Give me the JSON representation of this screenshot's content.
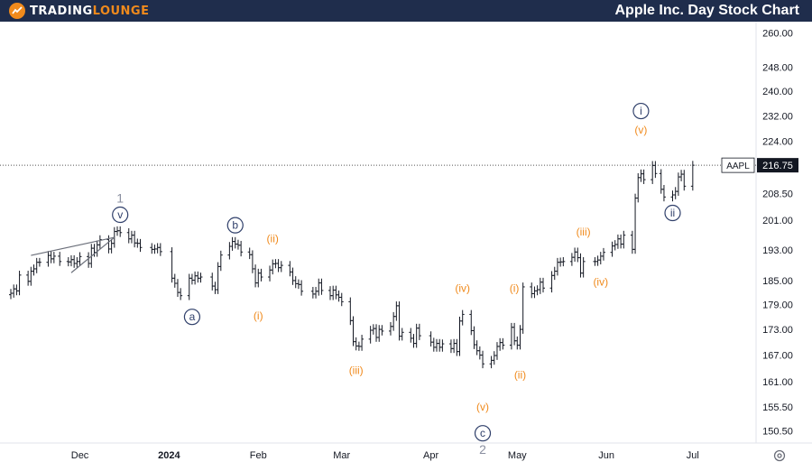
{
  "brand": {
    "name_part1": "TRADING",
    "name_part2": "LOUNGE"
  },
  "title": "Apple Inc. Day Stock Chart",
  "colors": {
    "bars": "#131722",
    "orange_labels": "#f08a1c",
    "circle_labels": "#2f3f6a",
    "gray_labels": "#8a8fa0",
    "price_line": "#555555",
    "header_bg": "#1f2d4c"
  },
  "icons": {
    "settings": "gear-icon",
    "logo": "logo-icon"
  },
  "chart_data": {
    "type": "ohlc",
    "symbol": "AAPL",
    "last_price": 216.75,
    "last_price_label": "216.75",
    "ylim": [
      148,
      264
    ],
    "y_scale": "log",
    "y_ticks": [
      "260.00",
      "248.00",
      "240.00",
      "232.00",
      "224.00",
      "216.75",
      "208.50",
      "201.00",
      "193.00",
      "185.00",
      "179.00",
      "173.00",
      "167.00",
      "161.00",
      "155.50",
      "150.50"
    ],
    "x_ticks": [
      {
        "label": "Dec",
        "date": "2023-12-01"
      },
      {
        "label": "2024",
        "date": "2024-01-01"
      },
      {
        "label": "Feb",
        "date": "2024-02-01"
      },
      {
        "label": "Mar",
        "date": "2024-03-01"
      },
      {
        "label": "Apr",
        "date": "2024-04-01"
      },
      {
        "label": "May",
        "date": "2024-05-01"
      },
      {
        "label": "Jun",
        "date": "2024-06-01"
      },
      {
        "label": "Jul",
        "date": "2024-07-01"
      }
    ],
    "xlim": [
      "2023-11-07",
      "2024-07-23"
    ],
    "closes": [
      [
        "2023-11-07",
        181.8
      ],
      [
        "2023-11-08",
        182.9
      ],
      [
        "2023-11-09",
        182.4
      ],
      [
        "2023-11-10",
        186.4
      ],
      [
        "2023-11-13",
        184.8
      ],
      [
        "2023-11-14",
        187.4
      ],
      [
        "2023-11-15",
        188.0
      ],
      [
        "2023-11-16",
        189.7
      ],
      [
        "2023-11-17",
        189.7
      ],
      [
        "2023-11-20",
        191.5
      ],
      [
        "2023-11-21",
        190.6
      ],
      [
        "2023-11-22",
        191.3
      ],
      [
        "2023-11-24",
        189.9
      ],
      [
        "2023-11-27",
        189.8
      ],
      [
        "2023-11-28",
        190.4
      ],
      [
        "2023-11-29",
        189.4
      ],
      [
        "2023-11-30",
        189.9
      ],
      [
        "2023-12-01",
        191.2
      ],
      [
        "2023-12-04",
        189.4
      ],
      [
        "2023-12-05",
        193.4
      ],
      [
        "2023-12-06",
        192.3
      ],
      [
        "2023-12-07",
        194.3
      ],
      [
        "2023-12-08",
        195.7
      ],
      [
        "2023-12-11",
        193.2
      ],
      [
        "2023-12-12",
        194.7
      ],
      [
        "2023-12-13",
        197.9
      ],
      [
        "2023-12-14",
        198.1
      ],
      [
        "2023-12-15",
        197.6
      ],
      [
        "2023-12-18",
        195.9
      ],
      [
        "2023-12-19",
        196.9
      ],
      [
        "2023-12-20",
        194.8
      ],
      [
        "2023-12-21",
        194.7
      ],
      [
        "2023-12-22",
        193.6
      ],
      [
        "2023-12-26",
        193.1
      ],
      [
        "2023-12-27",
        193.2
      ],
      [
        "2023-12-28",
        193.6
      ],
      [
        "2023-12-29",
        192.5
      ],
      [
        "2024-01-02",
        185.6
      ],
      [
        "2024-01-03",
        184.3
      ],
      [
        "2024-01-04",
        182.0
      ],
      [
        "2024-01-05",
        181.2
      ],
      [
        "2024-01-08",
        185.6
      ],
      [
        "2024-01-09",
        185.1
      ],
      [
        "2024-01-10",
        186.2
      ],
      [
        "2024-01-11",
        185.6
      ],
      [
        "2024-01-12",
        185.9
      ],
      [
        "2024-01-16",
        183.6
      ],
      [
        "2024-01-17",
        182.7
      ],
      [
        "2024-01-18",
        188.6
      ],
      [
        "2024-01-19",
        191.6
      ],
      [
        "2024-01-22",
        193.9
      ],
      [
        "2024-01-23",
        195.2
      ],
      [
        "2024-01-24",
        194.5
      ],
      [
        "2024-01-25",
        194.2
      ],
      [
        "2024-01-26",
        192.4
      ],
      [
        "2024-01-29",
        191.7
      ],
      [
        "2024-01-30",
        188.0
      ],
      [
        "2024-01-31",
        184.4
      ],
      [
        "2024-02-01",
        186.9
      ],
      [
        "2024-02-02",
        185.9
      ],
      [
        "2024-02-05",
        187.7
      ],
      [
        "2024-02-06",
        189.3
      ],
      [
        "2024-02-07",
        189.4
      ],
      [
        "2024-02-08",
        188.3
      ],
      [
        "2024-02-09",
        188.9
      ],
      [
        "2024-02-12",
        187.2
      ],
      [
        "2024-02-13",
        185.0
      ],
      [
        "2024-02-14",
        184.2
      ],
      [
        "2024-02-15",
        184.0
      ],
      [
        "2024-02-16",
        182.3
      ],
      [
        "2024-02-20",
        181.6
      ],
      [
        "2024-02-21",
        182.3
      ],
      [
        "2024-02-22",
        184.4
      ],
      [
        "2024-02-23",
        182.5
      ],
      [
        "2024-02-26",
        181.2
      ],
      [
        "2024-02-27",
        182.6
      ],
      [
        "2024-02-28",
        181.4
      ],
      [
        "2024-02-29",
        180.8
      ],
      [
        "2024-03-01",
        179.7
      ],
      [
        "2024-03-04",
        175.1
      ],
      [
        "2024-03-05",
        170.1
      ],
      [
        "2024-03-06",
        169.1
      ],
      [
        "2024-03-07",
        169.0
      ],
      [
        "2024-03-08",
        170.7
      ],
      [
        "2024-03-11",
        172.8
      ],
      [
        "2024-03-12",
        173.2
      ],
      [
        "2024-03-13",
        171.1
      ],
      [
        "2024-03-14",
        173.0
      ],
      [
        "2024-03-15",
        172.6
      ],
      [
        "2024-03-18",
        173.7
      ],
      [
        "2024-03-19",
        176.1
      ],
      [
        "2024-03-20",
        178.7
      ],
      [
        "2024-03-21",
        171.4
      ],
      [
        "2024-03-22",
        172.3
      ],
      [
        "2024-03-25",
        170.9
      ],
      [
        "2024-03-26",
        169.7
      ],
      [
        "2024-03-27",
        173.3
      ],
      [
        "2024-03-28",
        171.5
      ],
      [
        "2024-04-01",
        170.0
      ],
      [
        "2024-04-02",
        168.8
      ],
      [
        "2024-04-03",
        169.7
      ],
      [
        "2024-04-04",
        168.8
      ],
      [
        "2024-04-05",
        169.6
      ],
      [
        "2024-04-08",
        168.5
      ],
      [
        "2024-04-09",
        169.7
      ],
      [
        "2024-04-10",
        167.8
      ],
      [
        "2024-04-11",
        175.0
      ],
      [
        "2024-04-12",
        176.6
      ],
      [
        "2024-04-15",
        172.7
      ],
      [
        "2024-04-16",
        169.4
      ],
      [
        "2024-04-17",
        168.0
      ],
      [
        "2024-04-18",
        167.0
      ],
      [
        "2024-04-19",
        165.0
      ],
      [
        "2024-04-22",
        165.8
      ],
      [
        "2024-04-23",
        166.9
      ],
      [
        "2024-04-24",
        169.0
      ],
      [
        "2024-04-25",
        169.9
      ],
      [
        "2024-04-26",
        169.3
      ],
      [
        "2024-04-29",
        173.5
      ],
      [
        "2024-04-30",
        170.3
      ],
      [
        "2024-05-01",
        169.3
      ],
      [
        "2024-05-02",
        173.0
      ],
      [
        "2024-05-03",
        183.4
      ],
      [
        "2024-05-06",
        181.7
      ],
      [
        "2024-05-07",
        182.4
      ],
      [
        "2024-05-08",
        182.7
      ],
      [
        "2024-05-09",
        184.6
      ],
      [
        "2024-05-10",
        183.1
      ],
      [
        "2024-05-13",
        186.3
      ],
      [
        "2024-05-14",
        187.4
      ],
      [
        "2024-05-15",
        189.7
      ],
      [
        "2024-05-16",
        189.8
      ],
      [
        "2024-05-17",
        189.9
      ],
      [
        "2024-05-20",
        191.0
      ],
      [
        "2024-05-21",
        192.4
      ],
      [
        "2024-05-22",
        190.9
      ],
      [
        "2024-05-23",
        186.9
      ],
      [
        "2024-05-24",
        189.9
      ],
      [
        "2024-05-28",
        189.9
      ],
      [
        "2024-05-29",
        190.3
      ],
      [
        "2024-05-30",
        191.3
      ],
      [
        "2024-05-31",
        192.3
      ],
      [
        "2024-06-03",
        194.0
      ],
      [
        "2024-06-04",
        194.4
      ],
      [
        "2024-06-05",
        195.9
      ],
      [
        "2024-06-06",
        194.5
      ],
      [
        "2024-06-07",
        196.9
      ],
      [
        "2024-06-10",
        193.1
      ],
      [
        "2024-06-11",
        207.2
      ],
      [
        "2024-06-12",
        213.1
      ],
      [
        "2024-06-13",
        214.2
      ],
      [
        "2024-06-14",
        212.5
      ],
      [
        "2024-06-17",
        216.7
      ],
      [
        "2024-06-18",
        214.3
      ],
      [
        "2024-06-20",
        209.7
      ],
      [
        "2024-06-21",
        207.5
      ],
      [
        "2024-06-24",
        208.1
      ],
      [
        "2024-06-25",
        209.1
      ],
      [
        "2024-06-26",
        213.3
      ],
      [
        "2024-06-27",
        214.1
      ],
      [
        "2024-06-28",
        210.6
      ],
      [
        "2024-07-01",
        216.75
      ]
    ],
    "annotations": [
      {
        "text": "1",
        "style": "gray",
        "date": "2023-12-15",
        "price": 207.0
      },
      {
        "text": "v",
        "style": "circle",
        "date": "2023-12-15",
        "price": 202.5
      },
      {
        "text": "a",
        "style": "circle",
        "date": "2024-01-09",
        "price": 176.0
      },
      {
        "text": "b",
        "style": "circle",
        "date": "2024-01-24",
        "price": 199.6
      },
      {
        "text": "(ii)",
        "style": "orange",
        "date": "2024-02-06",
        "price": 196.0
      },
      {
        "text": "(i)",
        "style": "orange",
        "date": "2024-02-01",
        "price": 176.3
      },
      {
        "text": "(iii)",
        "style": "orange",
        "date": "2024-03-06",
        "price": 163.5
      },
      {
        "text": "(iv)",
        "style": "orange",
        "date": "2024-04-12",
        "price": 183.0
      },
      {
        "text": "(i)",
        "style": "orange",
        "date": "2024-04-30",
        "price": 183.0
      },
      {
        "text": "(ii)",
        "style": "orange",
        "date": "2024-05-02",
        "price": 162.5
      },
      {
        "text": "(v)",
        "style": "orange",
        "date": "2024-04-19",
        "price": 155.5
      },
      {
        "text": "c",
        "style": "circle",
        "date": "2024-04-19",
        "price": 150.0
      },
      {
        "text": "2",
        "style": "gray",
        "date": "2024-04-19",
        "price": 146.5
      },
      {
        "text": "(iii)",
        "style": "orange",
        "date": "2024-05-24",
        "price": 197.8
      },
      {
        "text": "(iv)",
        "style": "orange",
        "date": "2024-05-30",
        "price": 184.6
      },
      {
        "text": "i",
        "style": "circle",
        "date": "2024-06-13",
        "price": 233.5
      },
      {
        "text": "(v)",
        "style": "orange",
        "date": "2024-06-13",
        "price": 227.5
      },
      {
        "text": "ii",
        "style": "circle",
        "date": "2024-06-24",
        "price": 203.0
      }
    ],
    "trendlines": [
      {
        "from": [
          "2023-11-14",
          191.5
        ],
        "to": [
          "2023-12-13",
          196.3
        ]
      },
      {
        "from": [
          "2023-11-28",
          187.0
        ],
        "to": [
          "2023-12-13",
          196.3
        ]
      }
    ]
  }
}
